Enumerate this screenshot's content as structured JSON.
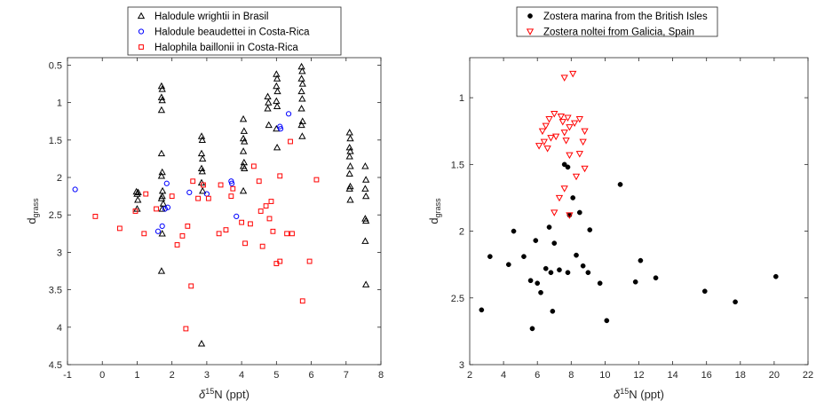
{
  "chart_data": [
    {
      "type": "scatter",
      "title": "",
      "xlabel": "δ15N (ppt)",
      "ylabel": "dgrass",
      "xlim": [
        -1,
        8
      ],
      "ylim": [
        0.4,
        4.5
      ],
      "y_reversed": true,
      "xticks": [
        -1,
        0,
        1,
        2,
        3,
        4,
        5,
        6,
        7,
        8
      ],
      "yticks": [
        0.5,
        1,
        1.5,
        2,
        2.5,
        3,
        3.5,
        4,
        4.5
      ],
      "grid": false,
      "legend_position": "top-center",
      "series": [
        {
          "name": "Halodule wrightii in Brasil",
          "marker": "triangle-up",
          "color": "#000000",
          "points": [
            [
              0.98,
              2.19
            ],
            [
              1.0,
              2.22
            ],
            [
              1.02,
              2.3
            ],
            [
              1.0,
              2.42
            ],
            [
              1.03,
              2.2
            ],
            [
              1.7,
              0.78
            ],
            [
              1.72,
              0.82
            ],
            [
              1.7,
              0.93
            ],
            [
              1.72,
              0.97
            ],
            [
              1.7,
              1.1
            ],
            [
              1.7,
              1.68
            ],
            [
              1.72,
              1.93
            ],
            [
              1.7,
              1.98
            ],
            [
              1.73,
              2.18
            ],
            [
              1.72,
              2.25
            ],
            [
              1.7,
              2.28
            ],
            [
              1.75,
              2.35
            ],
            [
              1.72,
              2.42
            ],
            [
              1.7,
              3.25
            ],
            [
              1.72,
              2.75
            ],
            [
              2.85,
              1.45
            ],
            [
              2.87,
              1.5
            ],
            [
              2.85,
              1.68
            ],
            [
              2.88,
              1.75
            ],
            [
              2.85,
              1.88
            ],
            [
              2.87,
              1.92
            ],
            [
              2.85,
              2.07
            ],
            [
              2.88,
              2.18
            ],
            [
              2.85,
              4.22
            ],
            [
              4.05,
              1.22
            ],
            [
              4.07,
              1.38
            ],
            [
              4.05,
              1.48
            ],
            [
              4.08,
              1.52
            ],
            [
              4.05,
              1.65
            ],
            [
              4.07,
              1.8
            ],
            [
              4.05,
              1.85
            ],
            [
              4.08,
              1.88
            ],
            [
              4.05,
              2.18
            ],
            [
              4.75,
              0.92
            ],
            [
              4.77,
              1.0
            ],
            [
              4.75,
              1.08
            ],
            [
              4.78,
              1.3
            ],
            [
              5.0,
              0.62
            ],
            [
              5.02,
              0.68
            ],
            [
              5.0,
              0.78
            ],
            [
              5.03,
              0.85
            ],
            [
              5.0,
              0.98
            ],
            [
              5.02,
              1.05
            ],
            [
              5.0,
              1.35
            ],
            [
              5.02,
              1.6
            ],
            [
              5.72,
              0.52
            ],
            [
              5.74,
              0.58
            ],
            [
              5.72,
              0.68
            ],
            [
              5.75,
              0.75
            ],
            [
              5.72,
              0.85
            ],
            [
              5.74,
              0.95
            ],
            [
              5.72,
              1.08
            ],
            [
              5.75,
              1.25
            ],
            [
              5.72,
              1.3
            ],
            [
              5.74,
              1.45
            ],
            [
              7.1,
              1.4
            ],
            [
              7.12,
              1.48
            ],
            [
              7.1,
              1.6
            ],
            [
              7.12,
              1.65
            ],
            [
              7.1,
              1.72
            ],
            [
              7.12,
              1.85
            ],
            [
              7.1,
              1.95
            ],
            [
              7.12,
              2.12
            ],
            [
              7.1,
              2.15
            ],
            [
              7.12,
              2.3
            ],
            [
              7.55,
              1.85
            ],
            [
              7.57,
              2.03
            ],
            [
              7.55,
              2.15
            ],
            [
              7.57,
              2.25
            ],
            [
              7.55,
              2.55
            ],
            [
              7.57,
              2.58
            ],
            [
              7.55,
              2.85
            ],
            [
              7.57,
              3.43
            ]
          ]
        },
        {
          "name": "Halodule beaudettei in Costa-Rica",
          "marker": "circle",
          "color": "#0000ff",
          "points": [
            [
              -0.78,
              2.16
            ],
            [
              1.6,
              2.72
            ],
            [
              1.72,
              2.65
            ],
            [
              1.8,
              2.42
            ],
            [
              1.85,
              2.08
            ],
            [
              1.88,
              2.4
            ],
            [
              2.5,
              2.2
            ],
            [
              3.0,
              2.22
            ],
            [
              3.7,
              2.05
            ],
            [
              3.72,
              2.08
            ],
            [
              3.85,
              2.52
            ],
            [
              5.1,
              1.32
            ],
            [
              5.12,
              1.35
            ],
            [
              5.35,
              1.15
            ]
          ]
        },
        {
          "name": "Halophila baillonii in Costa-Rica",
          "marker": "square",
          "color": "#ff0000",
          "points": [
            [
              -0.2,
              2.52
            ],
            [
              0.5,
              2.68
            ],
            [
              0.95,
              2.45
            ],
            [
              1.2,
              2.75
            ],
            [
              1.25,
              2.22
            ],
            [
              1.55,
              2.42
            ],
            [
              2.0,
              2.25
            ],
            [
              2.15,
              2.9
            ],
            [
              2.3,
              2.78
            ],
            [
              2.4,
              4.02
            ],
            [
              2.45,
              2.65
            ],
            [
              2.55,
              3.45
            ],
            [
              2.6,
              2.05
            ],
            [
              2.75,
              2.28
            ],
            [
              2.9,
              2.1
            ],
            [
              3.05,
              2.28
            ],
            [
              3.35,
              2.75
            ],
            [
              3.4,
              2.1
            ],
            [
              3.55,
              2.7
            ],
            [
              3.7,
              2.25
            ],
            [
              3.75,
              2.15
            ],
            [
              4.0,
              2.6
            ],
            [
              4.1,
              2.88
            ],
            [
              4.25,
              2.62
            ],
            [
              4.35,
              1.85
            ],
            [
              4.5,
              2.05
            ],
            [
              4.55,
              2.45
            ],
            [
              4.6,
              2.92
            ],
            [
              4.7,
              2.38
            ],
            [
              4.8,
              2.55
            ],
            [
              4.85,
              2.32
            ],
            [
              4.9,
              2.72
            ],
            [
              5.0,
              3.15
            ],
            [
              5.1,
              3.12
            ],
            [
              5.1,
              1.98
            ],
            [
              5.3,
              2.75
            ],
            [
              5.4,
              1.52
            ],
            [
              5.45,
              2.75
            ],
            [
              5.75,
              3.65
            ],
            [
              5.95,
              3.12
            ],
            [
              6.15,
              2.03
            ]
          ]
        }
      ]
    },
    {
      "type": "scatter",
      "title": "",
      "xlabel": "δ15N (ppt)",
      "ylabel": "dgrass",
      "xlim": [
        2,
        22
      ],
      "ylim": [
        0.7,
        3
      ],
      "y_reversed": true,
      "xticks": [
        2,
        4,
        6,
        8,
        10,
        12,
        14,
        16,
        18,
        20,
        22
      ],
      "yticks": [
        1,
        1.5,
        2,
        2.5,
        3
      ],
      "grid": false,
      "legend_position": "top-center",
      "series": [
        {
          "name": "Zostera marina from the British Isles",
          "marker": "dot",
          "color": "#000000",
          "points": [
            [
              2.7,
              2.59
            ],
            [
              3.2,
              2.19
            ],
            [
              4.3,
              2.25
            ],
            [
              4.6,
              2.0
            ],
            [
              5.2,
              2.19
            ],
            [
              5.6,
              2.37
            ],
            [
              5.9,
              2.07
            ],
            [
              6.0,
              2.39
            ],
            [
              6.2,
              2.46
            ],
            [
              6.5,
              2.28
            ],
            [
              6.7,
              1.97
            ],
            [
              6.8,
              2.31
            ],
            [
              6.9,
              2.6
            ],
            [
              7.0,
              2.09
            ],
            [
              7.3,
              2.29
            ],
            [
              7.6,
              1.5
            ],
            [
              7.8,
              1.52
            ],
            [
              7.8,
              2.31
            ],
            [
              7.9,
              1.88
            ],
            [
              8.1,
              1.75
            ],
            [
              8.3,
              2.18
            ],
            [
              8.5,
              1.86
            ],
            [
              8.7,
              2.26
            ],
            [
              9.0,
              2.31
            ],
            [
              9.1,
              1.99
            ],
            [
              9.7,
              2.39
            ],
            [
              10.1,
              2.67
            ],
            [
              10.9,
              1.65
            ],
            [
              11.8,
              2.38
            ],
            [
              12.1,
              2.22
            ],
            [
              13.0,
              2.35
            ],
            [
              15.9,
              2.45
            ],
            [
              17.7,
              2.53
            ],
            [
              20.1,
              2.34
            ],
            [
              5.7,
              2.73
            ]
          ]
        },
        {
          "name": "Zostera noltei from Galicia, Spain",
          "marker": "triangle-down",
          "color": "#ff0000",
          "points": [
            [
              7.6,
              0.85
            ],
            [
              8.1,
              0.82
            ],
            [
              6.3,
              1.25
            ],
            [
              6.4,
              1.33
            ],
            [
              6.5,
              1.21
            ],
            [
              6.7,
              1.16
            ],
            [
              7.0,
              1.12
            ],
            [
              7.4,
              1.14
            ],
            [
              7.5,
              1.18
            ],
            [
              7.8,
              1.15
            ],
            [
              7.9,
              1.22
            ],
            [
              8.2,
              1.19
            ],
            [
              8.5,
              1.16
            ],
            [
              8.8,
              1.25
            ],
            [
              8.7,
              1.33
            ],
            [
              8.5,
              1.42
            ],
            [
              8.8,
              1.53
            ],
            [
              8.3,
              1.59
            ],
            [
              7.9,
              1.43
            ],
            [
              7.7,
              1.32
            ],
            [
              7.6,
              1.26
            ],
            [
              7.1,
              1.29
            ],
            [
              6.8,
              1.3
            ],
            [
              6.6,
              1.38
            ],
            [
              7.6,
              1.68
            ],
            [
              7.3,
              1.75
            ],
            [
              7.9,
              1.88
            ],
            [
              7.0,
              1.86
            ],
            [
              6.1,
              1.36
            ]
          ]
        }
      ]
    }
  ]
}
